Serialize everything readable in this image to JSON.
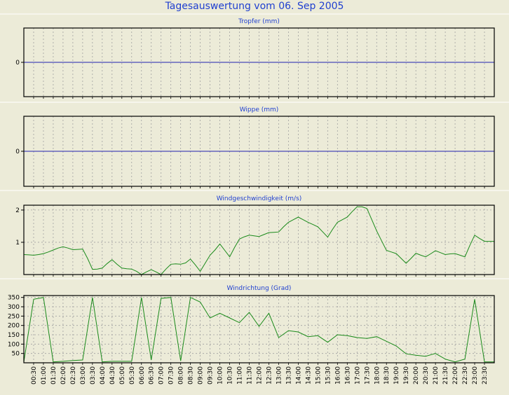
{
  "page": {
    "title": "Tagesauswertung vom 06. Sep 2005"
  },
  "colors": {
    "background": "#ecebd8",
    "title": "#1f3fd0",
    "zero_line": "#2020b0",
    "series_line": "#1a8a1a",
    "grid": "#a0a0a0",
    "frame": "#000000"
  },
  "chart_data": [
    {
      "type": "line",
      "title": "Tropfer (mm)",
      "yticks": [
        "0"
      ],
      "series": [
        {
          "values": [
            0
          ]
        }
      ]
    },
    {
      "type": "line",
      "title": "Wippe (mm)",
      "yticks": [
        "0"
      ],
      "series": [
        {
          "values": [
            0
          ]
        }
      ]
    },
    {
      "type": "line",
      "title": "Windgeschwindigkeit (m/s)",
      "ylim": [
        0,
        2.15
      ],
      "yticks": [
        "2",
        "1"
      ],
      "x": [
        0,
        15,
        30,
        45,
        60,
        75,
        90,
        105,
        120,
        135,
        150,
        165,
        180,
        195,
        210,
        225,
        240,
        255,
        270,
        285,
        300,
        315,
        330,
        345,
        360,
        375,
        390,
        405,
        420,
        435,
        450,
        465,
        480,
        495,
        510,
        525,
        540,
        555,
        570,
        585,
        600,
        615,
        630,
        645,
        660,
        675,
        690,
        705,
        720,
        735,
        750,
        765,
        780,
        795,
        810,
        825,
        840,
        855,
        870,
        885,
        900,
        915,
        930,
        945,
        960,
        975,
        990,
        1005,
        1020,
        1035,
        1050,
        1065,
        1080,
        1095,
        1110,
        1125,
        1140,
        1155,
        1170,
        1185,
        1200,
        1215,
        1230,
        1245,
        1260,
        1275,
        1290,
        1305,
        1320,
        1335,
        1350,
        1365,
        1380,
        1395,
        1410,
        1425,
        1440
      ],
      "series": [
        {
          "values": [
            0.62,
            0.61,
            0.6,
            0.62,
            0.65,
            0.7,
            0.76,
            0.82,
            0.86,
            0.82,
            0.77,
            0.78,
            0.79,
            0.5,
            0.16,
            0.17,
            0.2,
            0.34,
            0.46,
            0.32,
            0.2,
            0.18,
            0.17,
            0.1,
            0.0,
            0.08,
            0.15,
            0.08,
            0.0,
            0.17,
            0.32,
            0.33,
            0.32,
            0.36,
            0.48,
            0.3,
            0.1,
            0.35,
            0.6,
            0.76,
            0.95,
            0.75,
            0.55,
            0.84,
            1.1,
            1.17,
            1.22,
            1.2,
            1.18,
            1.24,
            1.3,
            1.31,
            1.32,
            1.48,
            1.62,
            1.7,
            1.78,
            1.7,
            1.62,
            1.55,
            1.48,
            1.32,
            1.16,
            1.4,
            1.62,
            1.7,
            1.78,
            1.95,
            2.1,
            2.1,
            2.05,
            1.7,
            1.35,
            1.05,
            0.75,
            0.7,
            0.65,
            0.5,
            0.35,
            0.5,
            0.66,
            0.6,
            0.55,
            0.64,
            0.74,
            0.68,
            0.62,
            0.64,
            0.65,
            0.6,
            0.55,
            0.9,
            1.22,
            1.12,
            1.03,
            1.03,
            1.03
          ]
        }
      ]
    },
    {
      "type": "line",
      "title": "Windrichtung (Grad)",
      "ylim": [
        0,
        360
      ],
      "yticks": [
        "350",
        "300",
        "250",
        "200",
        "150",
        "100",
        "50"
      ],
      "xticks": [
        "00:30",
        "01:00",
        "01:30",
        "02:00",
        "02:30",
        "03:00",
        "03:30",
        "04:00",
        "04:30",
        "05:00",
        "05:30",
        "06:00",
        "06:30",
        "07:00",
        "07:30",
        "08:00",
        "08:30",
        "09:00",
        "09:30",
        "10:00",
        "10:30",
        "11:00",
        "11:30",
        "12:00",
        "12:30",
        "13:00",
        "13:30",
        "14:00",
        "14:30",
        "15:00",
        "15:30",
        "16:00",
        "16:30",
        "17:00",
        "17:30",
        "18:00",
        "18:30",
        "19:00",
        "19:30",
        "20:00",
        "20:30",
        "21:00",
        "21:30",
        "22:00",
        "22:30",
        "23:00",
        "23:30"
      ],
      "x": [
        0,
        30,
        60,
        90,
        120,
        150,
        180,
        210,
        240,
        270,
        300,
        330,
        360,
        390,
        420,
        450,
        480,
        510,
        540,
        570,
        600,
        630,
        660,
        690,
        720,
        750,
        780,
        810,
        840,
        870,
        900,
        930,
        960,
        990,
        1020,
        1050,
        1080,
        1110,
        1140,
        1170,
        1200,
        1230,
        1260,
        1290,
        1320,
        1350,
        1380,
        1410,
        1440
      ],
      "series": [
        {
          "values": [
            5,
            340,
            350,
            5,
            8,
            12,
            15,
            350,
            5,
            8,
            8,
            8,
            350,
            15,
            345,
            350,
            10,
            350,
            325,
            240,
            265,
            240,
            215,
            270,
            195,
            265,
            135,
            172,
            165,
            140,
            145,
            110,
            150,
            145,
            135,
            130,
            140,
            115,
            90,
            48,
            40,
            35,
            50,
            20,
            5,
            20,
            340,
            5,
            5
          ]
        }
      ]
    }
  ]
}
